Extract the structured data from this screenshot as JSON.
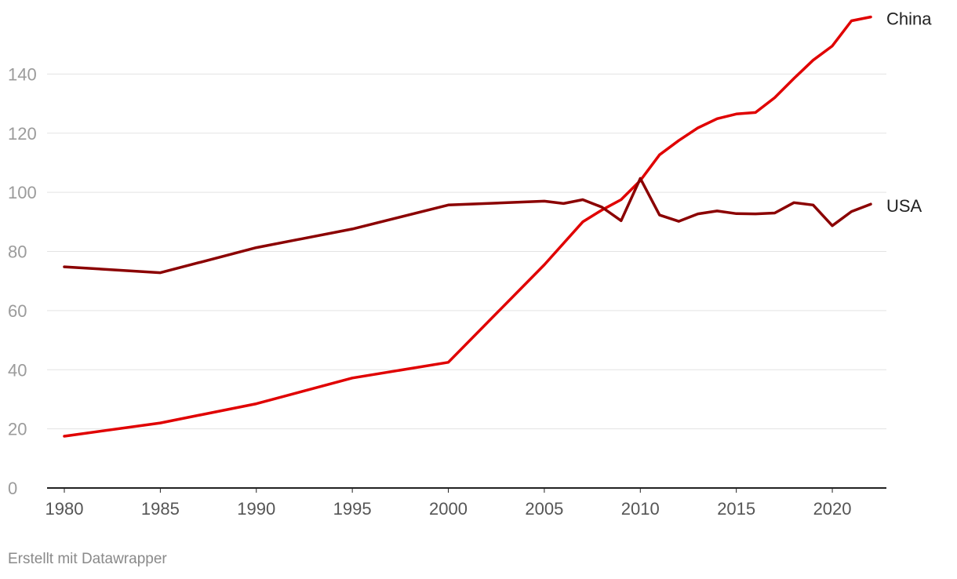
{
  "chart_data": {
    "type": "line",
    "title": "",
    "xlabel": "",
    "ylabel": "",
    "xlim": [
      1980,
      2022
    ],
    "ylim": [
      0,
      160
    ],
    "y_ticks": [
      0,
      20,
      40,
      60,
      80,
      100,
      120,
      140
    ],
    "x_ticks": [
      1980,
      1985,
      1990,
      1995,
      2000,
      2005,
      2010,
      2015,
      2020
    ],
    "grid": true,
    "series": [
      {
        "name": "China",
        "color": "#e00000",
        "points": [
          [
            1980,
            17.5
          ],
          [
            1985,
            22
          ],
          [
            1990,
            28.5
          ],
          [
            1995,
            37.2
          ],
          [
            2000,
            42.5
          ],
          [
            2005,
            75.5
          ],
          [
            2007,
            90
          ],
          [
            2008,
            94
          ],
          [
            2009,
            97.5
          ],
          [
            2010,
            104
          ],
          [
            2011,
            112.7
          ],
          [
            2012,
            117.5
          ],
          [
            2013,
            121.8
          ],
          [
            2014,
            124.9
          ],
          [
            2015,
            126.5
          ],
          [
            2016,
            127
          ],
          [
            2017,
            132
          ],
          [
            2018,
            138.5
          ],
          [
            2019,
            144.7
          ],
          [
            2020,
            149.5
          ],
          [
            2021,
            158
          ],
          [
            2022,
            159.3
          ]
        ]
      },
      {
        "name": "USA",
        "color": "#8b0000",
        "points": [
          [
            1980,
            74.8
          ],
          [
            1985,
            72.8
          ],
          [
            1990,
            81.3
          ],
          [
            1995,
            87.6
          ],
          [
            2000,
            95.7
          ],
          [
            2005,
            97
          ],
          [
            2006,
            96.2
          ],
          [
            2007,
            97.5
          ],
          [
            2008,
            95
          ],
          [
            2009,
            90.4
          ],
          [
            2010,
            104.7
          ],
          [
            2011,
            92.3
          ],
          [
            2012,
            90.2
          ],
          [
            2013,
            92.7
          ],
          [
            2014,
            93.7
          ],
          [
            2015,
            92.8
          ],
          [
            2016,
            92.7
          ],
          [
            2017,
            93
          ],
          [
            2018,
            96.5
          ],
          [
            2019,
            95.7
          ],
          [
            2020,
            88.7
          ],
          [
            2021,
            93.5
          ],
          [
            2022,
            96
          ]
        ]
      }
    ]
  },
  "footer": {
    "credit": "Erstellt mit Datawrapper"
  }
}
